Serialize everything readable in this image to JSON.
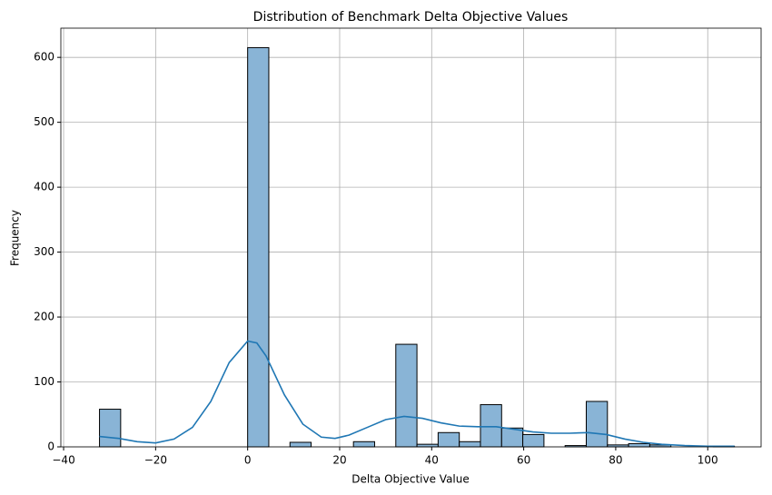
{
  "chart_data": {
    "type": "histogram",
    "title": "Distribution of Benchmark Delta Objective Values",
    "x_label": "Delta Objective Value",
    "y_label": "Frequency",
    "bins": [
      -32.2,
      -27.6,
      -23.0,
      -18.4,
      -13.8,
      -9.2,
      -4.6,
      0,
      4.6,
      9.2,
      13.8,
      18.4,
      23.0,
      27.6,
      32.2,
      36.8,
      41.4,
      46.0,
      50.6,
      55.2,
      59.8,
      64.4,
      69.0,
      73.6,
      78.2,
      82.8,
      87.4,
      92.0,
      96.6,
      101.2,
      105.8
    ],
    "values": [
      58,
      0,
      0,
      0,
      0,
      0,
      0,
      615,
      0,
      7,
      0,
      0,
      8,
      0,
      158,
      4,
      22,
      8,
      65,
      29,
      19,
      0,
      2,
      70,
      3,
      5,
      3,
      0,
      0,
      1
    ],
    "color": "#89b4d6",
    "edge_color": "#000000",
    "kde": {
      "color": "#1f77b4",
      "x": [
        -32.2,
        -28,
        -24,
        -20,
        -16,
        -12,
        -8,
        -4,
        0,
        2,
        4,
        8,
        12,
        16,
        19,
        22,
        26,
        30,
        34,
        38,
        42,
        46,
        50,
        54,
        58,
        62,
        66,
        70,
        74,
        78,
        82,
        86,
        90,
        95,
        100,
        105.8
      ],
      "y": [
        16,
        13,
        8,
        6,
        12,
        30,
        70,
        130,
        163,
        160,
        140,
        80,
        35,
        15,
        13,
        18,
        30,
        42,
        47,
        44,
        37,
        32,
        31,
        31,
        27,
        23,
        21,
        21,
        22,
        19,
        12,
        7,
        4,
        2,
        1,
        1
      ]
    },
    "xlim": [
      -40.6,
      111.6
    ],
    "ylim": [
      0,
      645
    ],
    "xticks": [
      {
        "value": -40,
        "label": "−40"
      },
      {
        "value": -20,
        "label": "−20"
      },
      0,
      20,
      40,
      60,
      80,
      100
    ],
    "yticks": [
      0,
      100,
      200,
      300,
      400,
      500,
      600
    ],
    "grid": true
  }
}
